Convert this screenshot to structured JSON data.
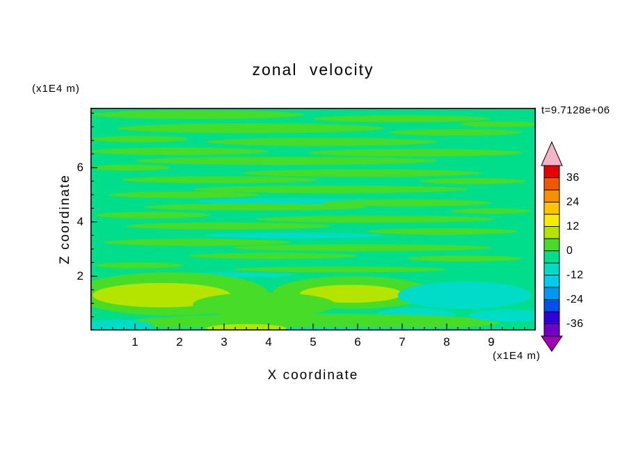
{
  "title": "zonal velocity",
  "timestamp": "t=9.7128e+06",
  "axes": {
    "x": {
      "label": "X coordinate",
      "unit": "(x1E4 m)",
      "ticks": [
        1,
        2,
        3,
        4,
        5,
        6,
        7,
        8,
        9
      ],
      "range": [
        0,
        10
      ],
      "minor_step": 0.25
    },
    "z": {
      "label": "Z coordinate",
      "unit": "(x1E4 m)",
      "ticks": [
        2,
        4,
        6
      ],
      "range": [
        0,
        8.2
      ],
      "minor_step": 0.5
    }
  },
  "colorbar": {
    "tick_labels": [
      36,
      24,
      12,
      0,
      -12,
      -24,
      -36
    ],
    "colors_top_to_bottom": [
      "#e60000",
      "#ef5800",
      "#f79000",
      "#ffc400",
      "#f6ee00",
      "#b4e400",
      "#46dc28",
      "#00de8c",
      "#00dcc8",
      "#00ccec",
      "#0098f0",
      "#0050f0",
      "#3000dc",
      "#7000c8"
    ],
    "over_arrow_color": "#f4b4c8",
    "under_arrow_color": "#a000b4"
  },
  "chart_data": {
    "type": "filled_contour",
    "title": "zonal velocity",
    "time_annotation": "t=9.7128e+06",
    "xlabel": "X coordinate",
    "x_unit": "(x1E4 m)",
    "ylabel": "Z coordinate",
    "y_unit": "(x1E4 m)",
    "x_range": [
      0,
      10
    ],
    "z_range": [
      0,
      8.2
    ],
    "x_ticks": [
      1,
      2,
      3,
      4,
      5,
      6,
      7,
      8,
      9
    ],
    "z_ticks": [
      2,
      4,
      6
    ],
    "contour_interval": 6,
    "levels": [
      -42,
      -36,
      -30,
      -24,
      -18,
      -12,
      -6,
      0,
      6,
      12,
      18,
      24,
      30,
      36,
      42
    ],
    "colorbar_tick_labels": [
      36,
      24,
      12,
      0,
      -12,
      -24,
      -36
    ],
    "grid": "off",
    "legend_position": "right-colorbar-with-over-under-arrows",
    "field_summary": "Zonal velocity field is mostly within -6 to 0 (background spring green) with many thin horizontal streaks of 0 to +6 (green) throughout the upper region, a few -6 to -12 (turquoise) streaks, and +6 to +12 (yellow-green) patches embedded in green zones near the bottom (z of about 1), plus turquoise patches near the lower-right and bottom edge.",
    "field_colors": {
      "bg": "#00de8c",
      "g": "#46dc28",
      "yg": "#b4e400",
      "c": "#00dcc8"
    },
    "features": [
      {
        "x": 2.4,
        "z": 7.95,
        "rx": 2.4,
        "rz": 0.16,
        "c": "g"
      },
      {
        "x": 7.0,
        "z": 7.8,
        "rx": 2.0,
        "rz": 0.13,
        "c": "g"
      },
      {
        "x": 9.2,
        "z": 7.6,
        "rx": 0.9,
        "rz": 0.11,
        "c": "g"
      },
      {
        "x": 3.6,
        "z": 7.45,
        "rx": 3.0,
        "rz": 0.18,
        "c": "g"
      },
      {
        "x": 8.2,
        "z": 7.3,
        "rx": 1.5,
        "rz": 0.12,
        "c": "g"
      },
      {
        "x": 1.1,
        "z": 7.05,
        "rx": 1.1,
        "rz": 0.12,
        "c": "g"
      },
      {
        "x": 5.2,
        "z": 6.95,
        "rx": 2.6,
        "rz": 0.15,
        "c": "g"
      },
      {
        "x": 2.0,
        "z": 6.6,
        "rx": 2.0,
        "rz": 0.14,
        "c": "g"
      },
      {
        "x": 7.3,
        "z": 6.55,
        "rx": 2.4,
        "rz": 0.14,
        "c": "g"
      },
      {
        "x": 4.4,
        "z": 6.25,
        "rx": 3.4,
        "rz": 0.15,
        "c": "g"
      },
      {
        "x": 0.9,
        "z": 6.0,
        "rx": 0.9,
        "rz": 0.11,
        "c": "g"
      },
      {
        "x": 6.1,
        "z": 5.8,
        "rx": 2.7,
        "rz": 0.14,
        "c": "g"
      },
      {
        "x": 2.9,
        "z": 5.55,
        "rx": 2.2,
        "rz": 0.13,
        "c": "g"
      },
      {
        "x": 8.6,
        "z": 5.5,
        "rx": 1.2,
        "rz": 0.11,
        "c": "g"
      },
      {
        "x": 5.4,
        "z": 5.2,
        "rx": 3.1,
        "rz": 0.14,
        "c": "g"
      },
      {
        "x": 2.1,
        "z": 5.0,
        "rx": 1.7,
        "rz": 0.12,
        "c": "g"
      },
      {
        "x": 4.6,
        "z": 4.75,
        "rx": 2.2,
        "rz": 0.12,
        "c": "c"
      },
      {
        "x": 7.1,
        "z": 4.7,
        "rx": 1.9,
        "rz": 0.13,
        "c": "g"
      },
      {
        "x": 9.0,
        "z": 4.4,
        "rx": 0.9,
        "rz": 0.1,
        "c": "g"
      },
      {
        "x": 3.7,
        "z": 4.55,
        "rx": 2.5,
        "rz": 0.13,
        "c": "g"
      },
      {
        "x": 1.4,
        "z": 4.25,
        "rx": 1.3,
        "rz": 0.12,
        "c": "g"
      },
      {
        "x": 6.4,
        "z": 4.1,
        "rx": 2.7,
        "rz": 0.13,
        "c": "g"
      },
      {
        "x": 3.1,
        "z": 3.85,
        "rx": 2.3,
        "rz": 0.13,
        "c": "g"
      },
      {
        "x": 7.9,
        "z": 3.65,
        "rx": 1.7,
        "rz": 0.12,
        "c": "g"
      },
      {
        "x": 4.6,
        "z": 3.5,
        "rx": 2.0,
        "rz": 0.1,
        "c": "c"
      },
      {
        "x": 2.4,
        "z": 3.25,
        "rx": 2.1,
        "rz": 0.13,
        "c": "g"
      },
      {
        "x": 6.1,
        "z": 3.05,
        "rx": 2.9,
        "rz": 0.13,
        "c": "g"
      },
      {
        "x": 4.1,
        "z": 2.75,
        "rx": 1.9,
        "rz": 0.11,
        "c": "g"
      },
      {
        "x": 8.4,
        "z": 2.65,
        "rx": 1.3,
        "rz": 0.11,
        "c": "g"
      },
      {
        "x": 1.1,
        "z": 2.4,
        "rx": 1.0,
        "rz": 0.11,
        "c": "g"
      },
      {
        "x": 5.6,
        "z": 2.25,
        "rx": 2.4,
        "rz": 0.11,
        "c": "g"
      },
      {
        "x": 3.0,
        "z": 2.05,
        "rx": 1.6,
        "rz": 0.09,
        "c": "c"
      },
      {
        "x": 1.8,
        "z": 1.35,
        "rx": 2.2,
        "rz": 0.8,
        "c": "g"
      },
      {
        "x": 1.6,
        "z": 1.3,
        "rx": 1.55,
        "rz": 0.45,
        "c": "yg"
      },
      {
        "x": 5.9,
        "z": 1.4,
        "rx": 1.8,
        "rz": 0.6,
        "c": "g"
      },
      {
        "x": 5.85,
        "z": 1.35,
        "rx": 1.15,
        "rz": 0.33,
        "c": "yg"
      },
      {
        "x": 3.9,
        "z": 0.95,
        "rx": 1.6,
        "rz": 0.45,
        "c": "g"
      },
      {
        "x": 8.4,
        "z": 1.3,
        "rx": 1.5,
        "rz": 0.5,
        "c": "c"
      },
      {
        "x": 7.3,
        "z": 0.55,
        "rx": 0.9,
        "rz": 0.28,
        "c": "c"
      },
      {
        "x": 5.0,
        "z": 0.3,
        "rx": 4.2,
        "rz": 0.32,
        "c": "g"
      },
      {
        "x": 5.0,
        "z": 0.0,
        "rx": 5.2,
        "rz": 0.12,
        "c": "c"
      },
      {
        "x": 3.5,
        "z": 0.08,
        "rx": 0.9,
        "rz": 0.16,
        "c": "yg"
      },
      {
        "x": 0.6,
        "z": 0.18,
        "rx": 0.8,
        "rz": 0.22,
        "c": "c"
      },
      {
        "x": 9.4,
        "z": 0.55,
        "rx": 0.9,
        "rz": 0.22,
        "c": "c"
      }
    ]
  }
}
